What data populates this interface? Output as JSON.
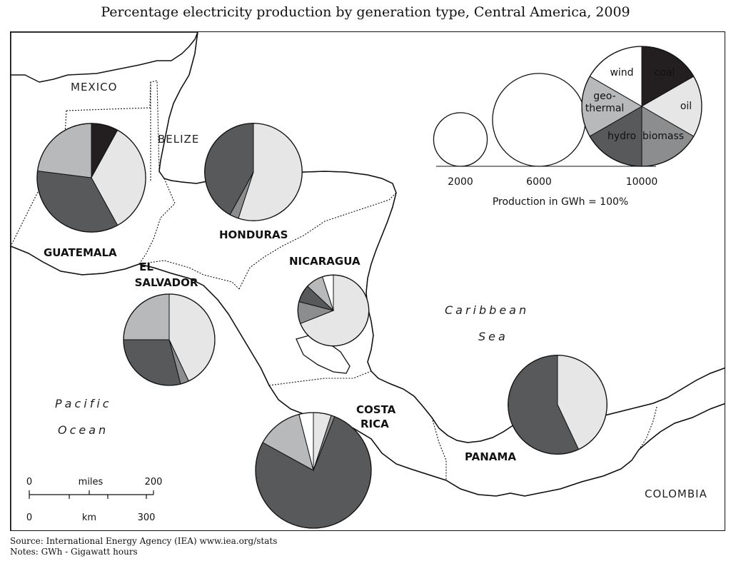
{
  "title": "Percentage electricity production by generation type, Central America, 2009",
  "colors": {
    "coal": "#231f20",
    "oil": "#e6e6e7",
    "biomass": "#8c8d8f",
    "hydro": "#58595b",
    "geothermal": "#b8b9bb",
    "wind": "#ffffff",
    "land": "#ffffff",
    "sea": "#ffffff",
    "border": "#111111"
  },
  "labels": {
    "mexico": "MEXICO",
    "belize": "BELIZE",
    "guatemala": "GUATEMALA",
    "honduras": "HONDURAS",
    "el_salvador_1": "EL",
    "el_salvador_2": "SALVADOR",
    "nicaragua": "NICARAGUA",
    "costa_rica_1": "COSTA",
    "costa_rica_2": "RICA",
    "panama": "PANAMA",
    "colombia": "COLOMBIA",
    "caribbean_1": "Caribbean",
    "caribbean_2": "Sea",
    "pacific_1": "Pacific",
    "pacific_2": "Ocean"
  },
  "legend": {
    "slices": [
      {
        "key": "coal",
        "label": "coal",
        "share": 16.67
      },
      {
        "key": "oil",
        "label": "oil",
        "share": 16.67
      },
      {
        "key": "biomass",
        "label": "biomass",
        "share": 16.67
      },
      {
        "key": "hydro",
        "label": "hydro",
        "share": 16.67
      },
      {
        "key": "geothermal",
        "label_1": "geo-",
        "label_2": "thermal",
        "share": 16.66
      },
      {
        "key": "wind",
        "label": "wind",
        "share": 16.66
      }
    ],
    "sizes": [
      {
        "gwh": 2000,
        "label": "2000"
      },
      {
        "gwh": 6000,
        "label": "6000"
      },
      {
        "gwh": 10000,
        "label": "10000"
      }
    ],
    "caption": "Production in GWh = 100%"
  },
  "scale_bar": {
    "miles_label": "miles",
    "miles_0": "0",
    "miles_max": "200",
    "km_label": "km",
    "km_0": "0",
    "km_max": "300"
  },
  "chart_data": {
    "type": "pie",
    "title": "Percentage electricity production by generation type, Central America, 2009",
    "unit": "% of production (pie area proportional to production in GWh)",
    "categories": [
      "coal",
      "oil",
      "biomass",
      "hydro",
      "geothermal",
      "wind"
    ],
    "countries": [
      {
        "name": "Guatemala",
        "production_gwh": 8200,
        "shares": {
          "coal": 8,
          "oil": 34,
          "biomass": 0,
          "hydro": 35,
          "geothermal": 23,
          "wind": 0
        }
      },
      {
        "name": "Honduras",
        "production_gwh": 6600,
        "shares": {
          "coal": 0,
          "oil": 55,
          "biomass": 3,
          "hydro": 42,
          "geothermal": 0,
          "wind": 0
        }
      },
      {
        "name": "El Salvador",
        "production_gwh": 5800,
        "shares": {
          "coal": 0,
          "oil": 43,
          "biomass": 3,
          "hydro": 29,
          "geothermal": 25,
          "wind": 0
        }
      },
      {
        "name": "Nicaragua",
        "production_gwh": 3500,
        "shares": {
          "coal": 0,
          "oil": 69,
          "biomass": 10,
          "hydro": 8,
          "geothermal": 8,
          "wind": 5
        }
      },
      {
        "name": "Costa Rica",
        "production_gwh": 9300,
        "shares": {
          "coal": 0,
          "oil": 5,
          "biomass": 1,
          "hydro": 77,
          "geothermal": 13,
          "wind": 4
        }
      },
      {
        "name": "Panama",
        "production_gwh": 6800,
        "shares": {
          "coal": 0,
          "oil": 43,
          "biomass": 0,
          "hydro": 57,
          "geothermal": 0,
          "wind": 0
        }
      }
    ]
  },
  "footer": {
    "source": "Source: International Energy Agency (IEA) www.iea.org/stats",
    "notes": "Notes: GWh - Gigawatt hours"
  }
}
